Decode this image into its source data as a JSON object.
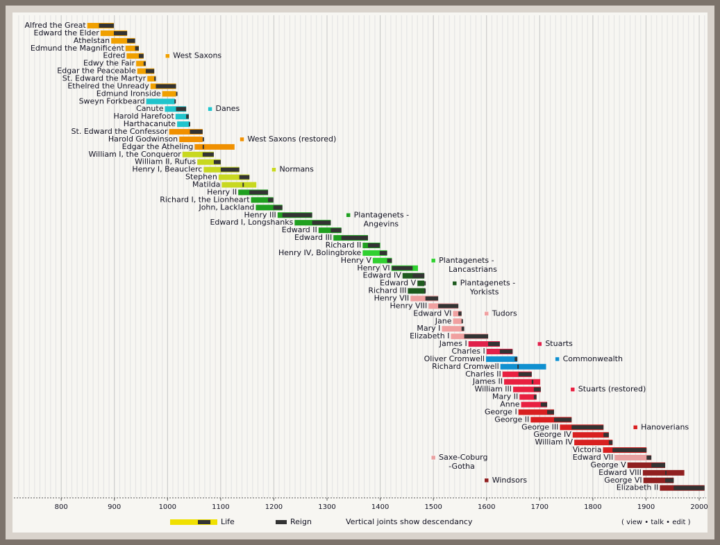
{
  "chart_data": {
    "type": "timeline",
    "xlim": [
      711,
      2013
    ],
    "xticks": [
      800,
      900,
      1000,
      1100,
      1200,
      1300,
      1400,
      1500,
      1600,
      1700,
      1800,
      1900,
      2000
    ],
    "grid": true,
    "reign_color": "#333333",
    "dynasties": [
      {
        "name": [
          "West Saxons"
        ],
        "color": "#f0a000"
      },
      {
        "name": [
          "Danes"
        ],
        "color": "#20c4cc"
      },
      {
        "name": [
          "West Saxons (restored)"
        ],
        "color": "#f09000"
      },
      {
        "name": [
          "Normans"
        ],
        "color": "#c8d820"
      },
      {
        "name": [
          "Plantagenets -",
          "Angevins"
        ],
        "color": "#20a020"
      },
      {
        "name": [
          "Plantagenets -",
          "Lancastrians"
        ],
        "color": "#30d030"
      },
      {
        "name": [
          "Plantagenets -",
          "Yorkists"
        ],
        "color": "#1e5a1e"
      },
      {
        "name": [
          "Tudors"
        ],
        "color": "#f0a0a0"
      },
      {
        "name": [
          "Stuarts"
        ],
        "color": "#e0204a"
      },
      {
        "name": [
          "Commonwealth"
        ],
        "color": "#1090d0"
      },
      {
        "name": [
          "Stuarts (restored)"
        ],
        "color": "#e82040"
      },
      {
        "name": [
          "Hanoverians"
        ],
        "color": "#d82020"
      },
      {
        "name": [
          "Saxe-Coburg",
          "-Gotha"
        ],
        "color": "#e8a0a0"
      },
      {
        "name": [
          "Windsors"
        ],
        "color": "#902020"
      }
    ],
    "monarchs": [
      {
        "name": "Alfred the Great",
        "dynasty": 0,
        "life": [
          849,
          899
        ],
        "reign": [
          871,
          899
        ]
      },
      {
        "name": "Edward the Elder",
        "dynasty": 0,
        "life": [
          874,
          924
        ],
        "reign": [
          899,
          924
        ]
      },
      {
        "name": "Athelstan",
        "dynasty": 0,
        "life": [
          894,
          939
        ],
        "reign": [
          924,
          939
        ]
      },
      {
        "name": "Edmund the Magnificent",
        "dynasty": 0,
        "life": [
          921,
          946
        ],
        "reign": [
          939,
          946
        ]
      },
      {
        "name": "Edred",
        "dynasty": 0,
        "life": [
          923,
          955
        ],
        "reign": [
          946,
          955
        ]
      },
      {
        "name": "Edwy the Fair",
        "dynasty": 0,
        "life": [
          941,
          959
        ],
        "reign": [
          955,
          959
        ]
      },
      {
        "name": "Edgar the Peaceable",
        "dynasty": 0,
        "life": [
          943,
          975
        ],
        "reign": [
          959,
          975
        ]
      },
      {
        "name": "St. Edward the Martyr",
        "dynasty": 0,
        "life": [
          962,
          978
        ],
        "reign": [
          975,
          978
        ]
      },
      {
        "name": "Ethelred the Unready",
        "dynasty": 0,
        "life": [
          968,
          1016
        ],
        "reign": [
          978,
          1016
        ]
      },
      {
        "name": "Edmund Ironside",
        "dynasty": 0,
        "life": [
          990,
          1016
        ],
        "reign": [
          1016,
          1016
        ]
      },
      {
        "name": "Sweyn Forkbeard",
        "dynasty": 1,
        "life": [
          960,
          1014
        ],
        "reign": [
          1013,
          1014
        ]
      },
      {
        "name": "Canute",
        "dynasty": 1,
        "life": [
          995,
          1035
        ],
        "reign": [
          1016,
          1035
        ]
      },
      {
        "name": "Harold Harefoot",
        "dynasty": 1,
        "life": [
          1015,
          1040
        ],
        "reign": [
          1035,
          1040
        ]
      },
      {
        "name": "Harthacanute",
        "dynasty": 1,
        "life": [
          1018,
          1042
        ],
        "reign": [
          1040,
          1042
        ]
      },
      {
        "name": "St. Edward the Confessor",
        "dynasty": 2,
        "life": [
          1003,
          1066
        ],
        "reign": [
          1042,
          1066
        ]
      },
      {
        "name": "Harold Godwinson",
        "dynasty": 2,
        "life": [
          1022,
          1066
        ],
        "reign": [
          1066,
          1066
        ]
      },
      {
        "name": "Edgar the Atheling",
        "dynasty": 2,
        "life": [
          1051,
          1126
        ],
        "reign": [
          1066,
          1066
        ]
      },
      {
        "name": "William I, the Conqueror",
        "dynasty": 3,
        "life": [
          1028,
          1087
        ],
        "reign": [
          1066,
          1087
        ]
      },
      {
        "name": "William II, Rufus",
        "dynasty": 3,
        "life": [
          1056,
          1100
        ],
        "reign": [
          1087,
          1100
        ]
      },
      {
        "name": "Henry I, Beauclerc",
        "dynasty": 3,
        "life": [
          1068,
          1135
        ],
        "reign": [
          1100,
          1135
        ]
      },
      {
        "name": "Stephen",
        "dynasty": 3,
        "life": [
          1096,
          1154
        ],
        "reign": [
          1135,
          1154
        ]
      },
      {
        "name": "Matilda",
        "dynasty": 3,
        "life": [
          1102,
          1167
        ],
        "reign": [
          1141,
          1141
        ]
      },
      {
        "name": "Henry II",
        "dynasty": 4,
        "life": [
          1133,
          1189
        ],
        "reign": [
          1154,
          1189
        ]
      },
      {
        "name": "Richard I, the Lionheart",
        "dynasty": 4,
        "life": [
          1157,
          1199
        ],
        "reign": [
          1189,
          1199
        ]
      },
      {
        "name": "John, Lackland",
        "dynasty": 4,
        "life": [
          1166,
          1216
        ],
        "reign": [
          1199,
          1216
        ]
      },
      {
        "name": "Henry III",
        "dynasty": 4,
        "life": [
          1207,
          1272
        ],
        "reign": [
          1216,
          1272
        ]
      },
      {
        "name": "Edward I, Longshanks",
        "dynasty": 4,
        "life": [
          1239,
          1307
        ],
        "reign": [
          1272,
          1307
        ]
      },
      {
        "name": "Edward II",
        "dynasty": 4,
        "life": [
          1284,
          1327
        ],
        "reign": [
          1307,
          1327
        ]
      },
      {
        "name": "Edward III",
        "dynasty": 4,
        "life": [
          1312,
          1377
        ],
        "reign": [
          1327,
          1377
        ]
      },
      {
        "name": "Richard II",
        "dynasty": 4,
        "life": [
          1367,
          1400
        ],
        "reign": [
          1377,
          1399
        ]
      },
      {
        "name": "Henry IV, Bolingbroke",
        "dynasty": 5,
        "life": [
          1367,
          1413
        ],
        "reign": [
          1399,
          1413
        ]
      },
      {
        "name": "Henry V",
        "dynasty": 5,
        "life": [
          1386,
          1422
        ],
        "reign": [
          1413,
          1422
        ]
      },
      {
        "name": "Henry VI",
        "dynasty": 5,
        "life": [
          1421,
          1471
        ],
        "reign": [
          1422,
          1461
        ]
      },
      {
        "name": "Edward IV",
        "dynasty": 6,
        "life": [
          1442,
          1483
        ],
        "reign": [
          1461,
          1483
        ]
      },
      {
        "name": "Edward V",
        "dynasty": 6,
        "life": [
          1470,
          1483
        ],
        "reign": [
          1483,
          1483
        ]
      },
      {
        "name": "Richard III",
        "dynasty": 6,
        "life": [
          1452,
          1485
        ],
        "reign": [
          1483,
          1485
        ]
      },
      {
        "name": "Henry VII",
        "dynasty": 7,
        "life": [
          1457,
          1509
        ],
        "reign": [
          1485,
          1509
        ]
      },
      {
        "name": "Henry VIII",
        "dynasty": 7,
        "life": [
          1491,
          1547
        ],
        "reign": [
          1509,
          1547
        ]
      },
      {
        "name": "Edward VI",
        "dynasty": 7,
        "life": [
          1537,
          1553
        ],
        "reign": [
          1547,
          1553
        ]
      },
      {
        "name": "Jane",
        "dynasty": 7,
        "life": [
          1537,
          1554
        ],
        "reign": [
          1553,
          1553
        ]
      },
      {
        "name": "Mary I",
        "dynasty": 7,
        "life": [
          1516,
          1558
        ],
        "reign": [
          1553,
          1558
        ]
      },
      {
        "name": "Elizabeth I",
        "dynasty": 7,
        "life": [
          1533,
          1603
        ],
        "reign": [
          1558,
          1603
        ]
      },
      {
        "name": "James I",
        "dynasty": 8,
        "life": [
          1566,
          1625
        ],
        "reign": [
          1603,
          1625
        ]
      },
      {
        "name": "Charles I",
        "dynasty": 8,
        "life": [
          1600,
          1649
        ],
        "reign": [
          1625,
          1649
        ]
      },
      {
        "name": "Oliver Cromwell",
        "dynasty": 9,
        "life": [
          1599,
          1658
        ],
        "reign": [
          1653,
          1658
        ]
      },
      {
        "name": "Richard Cromwell",
        "dynasty": 9,
        "life": [
          1626,
          1712
        ],
        "reign": [
          1658,
          1659
        ]
      },
      {
        "name": "Charles II",
        "dynasty": 10,
        "life": [
          1630,
          1685
        ],
        "reign": [
          1660,
          1685
        ]
      },
      {
        "name": "James II",
        "dynasty": 10,
        "life": [
          1633,
          1701
        ],
        "reign": [
          1685,
          1688
        ]
      },
      {
        "name": "William III",
        "dynasty": 10,
        "life": [
          1650,
          1702
        ],
        "reign": [
          1689,
          1702
        ]
      },
      {
        "name": "Mary II",
        "dynasty": 10,
        "life": [
          1662,
          1694
        ],
        "reign": [
          1689,
          1694
        ]
      },
      {
        "name": "Anne",
        "dynasty": 10,
        "life": [
          1665,
          1714
        ],
        "reign": [
          1702,
          1714
        ]
      },
      {
        "name": "George I",
        "dynasty": 11,
        "life": [
          1660,
          1727
        ],
        "reign": [
          1714,
          1727
        ]
      },
      {
        "name": "George II",
        "dynasty": 11,
        "life": [
          1683,
          1760
        ],
        "reign": [
          1727,
          1760
        ]
      },
      {
        "name": "George III",
        "dynasty": 11,
        "life": [
          1738,
          1820
        ],
        "reign": [
          1760,
          1820
        ]
      },
      {
        "name": "George IV",
        "dynasty": 11,
        "life": [
          1762,
          1830
        ],
        "reign": [
          1820,
          1830
        ]
      },
      {
        "name": "William IV",
        "dynasty": 11,
        "life": [
          1765,
          1837
        ],
        "reign": [
          1830,
          1837
        ]
      },
      {
        "name": "Victoria",
        "dynasty": 11,
        "life": [
          1819,
          1901
        ],
        "reign": [
          1837,
          1901
        ]
      },
      {
        "name": "Edward VII",
        "dynasty": 12,
        "life": [
          1841,
          1910
        ],
        "reign": [
          1901,
          1910
        ]
      },
      {
        "name": "George V",
        "dynasty": 13,
        "life": [
          1865,
          1936
        ],
        "reign": [
          1910,
          1936
        ]
      },
      {
        "name": "Edward VIII",
        "dynasty": 13,
        "life": [
          1894,
          1972
        ],
        "reign": [
          1936,
          1936
        ]
      },
      {
        "name": "George VI",
        "dynasty": 13,
        "life": [
          1895,
          1952
        ],
        "reign": [
          1936,
          1952
        ]
      },
      {
        "name": "Elizabeth II",
        "dynasty": 13,
        "life": [
          1926,
          2010
        ],
        "reign": [
          1952,
          2010
        ]
      }
    ],
    "legend": {
      "life": "Life",
      "reign": "Reign",
      "note": "Vertical joints show descendancy",
      "links": "( view • talk • edit )"
    }
  }
}
